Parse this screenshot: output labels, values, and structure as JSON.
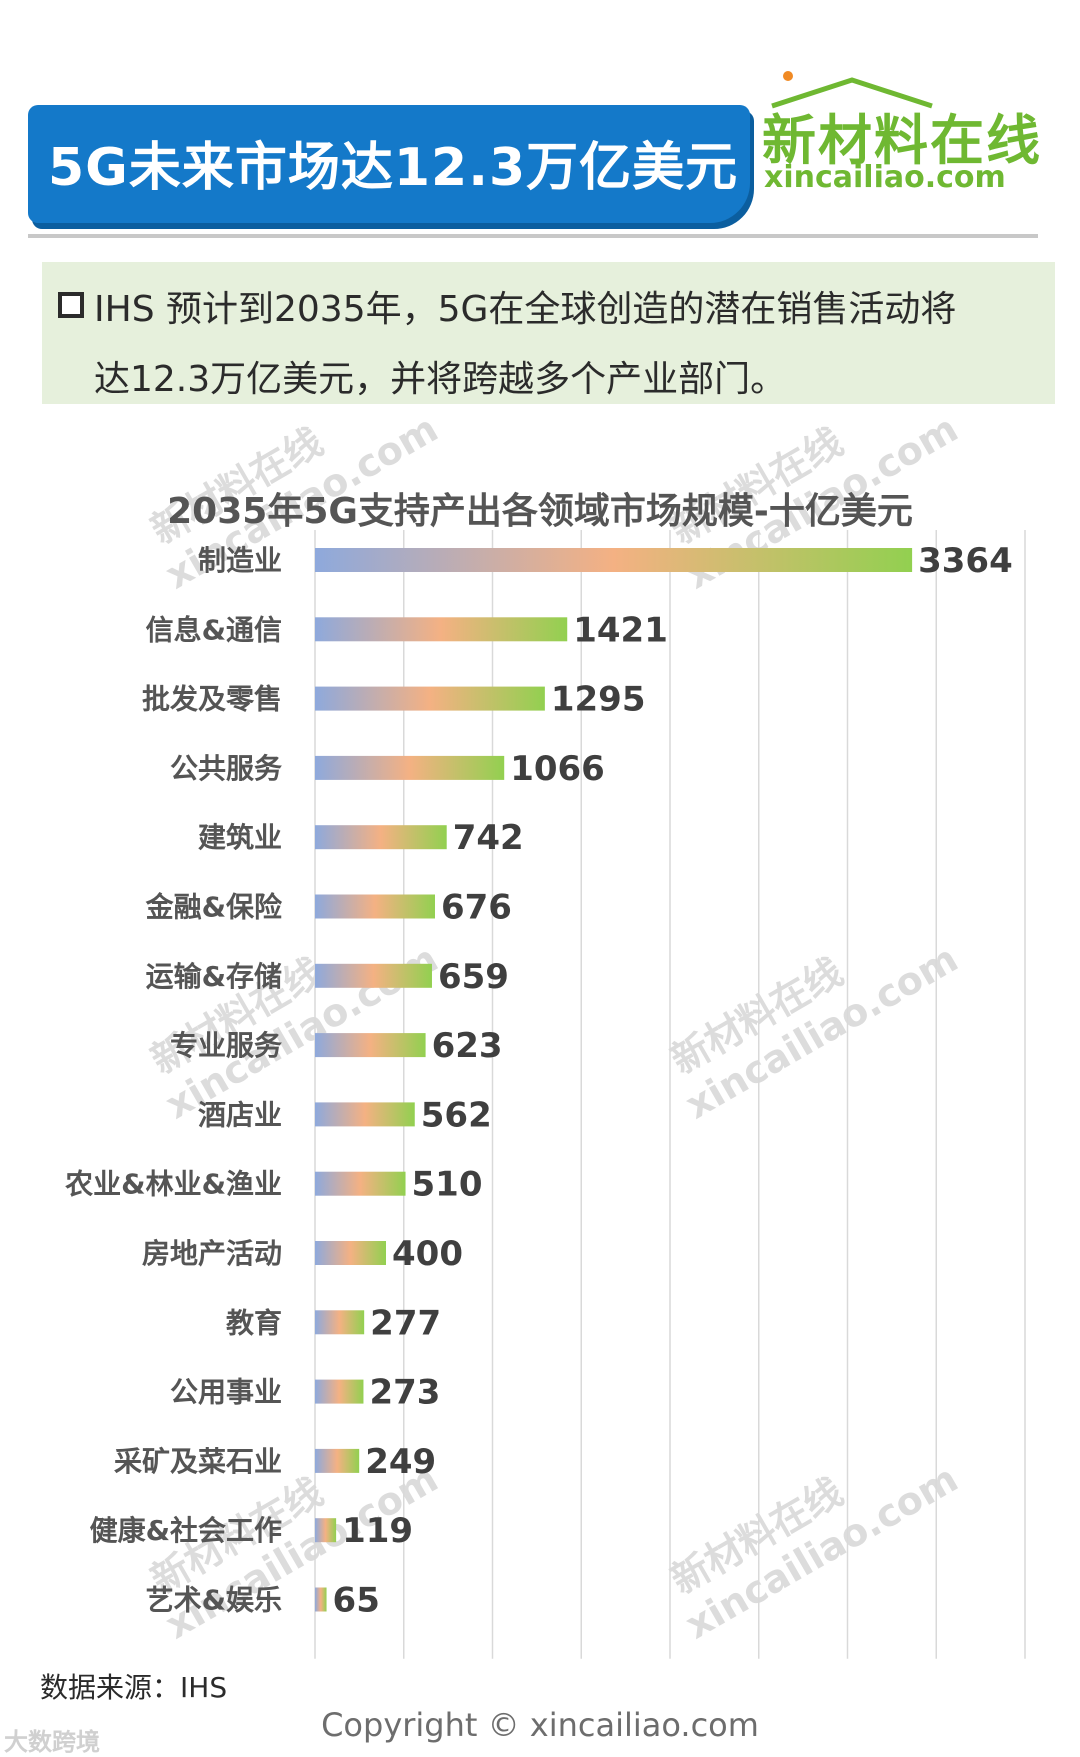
{
  "header": {
    "title": "5G未来市场达12.3万亿美元",
    "brand_cn": "新材料在线",
    "brand_en": "xincailiao.com",
    "banner_color": "#1479c9",
    "brand_color": "#6fb832"
  },
  "note": {
    "line1": "IHS 预计到2035年，5G在全球创造的潜在销售活动将",
    "line2": "达12.3万亿美元，并将跨越多个产业部门。"
  },
  "watermark": {
    "cn": "新材料在线",
    "en": "xincailiao.com"
  },
  "chart_data": {
    "type": "bar",
    "orientation": "horizontal",
    "title": "2035年5G支持产出各领域市场规模-十亿美元",
    "categories": [
      "制造业",
      "信息&通信",
      "批发及零售",
      "公共服务",
      "建筑业",
      "金融&保险",
      "运输&存储",
      "专业服务",
      "酒店业",
      "农业&林业&渔业",
      "房地产活动",
      "教育",
      "公用事业",
      "采矿及菜石业",
      "健康&社会工作",
      "艺术&娱乐"
    ],
    "values": [
      3364,
      1421,
      1295,
      1066,
      742,
      676,
      659,
      623,
      562,
      510,
      400,
      277,
      273,
      249,
      119,
      65
    ],
    "xlim": [
      0,
      4000
    ],
    "grid": true,
    "bar_gradient": [
      "#8ea9dc",
      "#f4b183",
      "#92d050"
    ],
    "data_labels": true
  },
  "footer": {
    "source": "数据来源：IHS",
    "copyright": "Copyright © xincailiao.com",
    "corner_mark": "大数跨境"
  }
}
